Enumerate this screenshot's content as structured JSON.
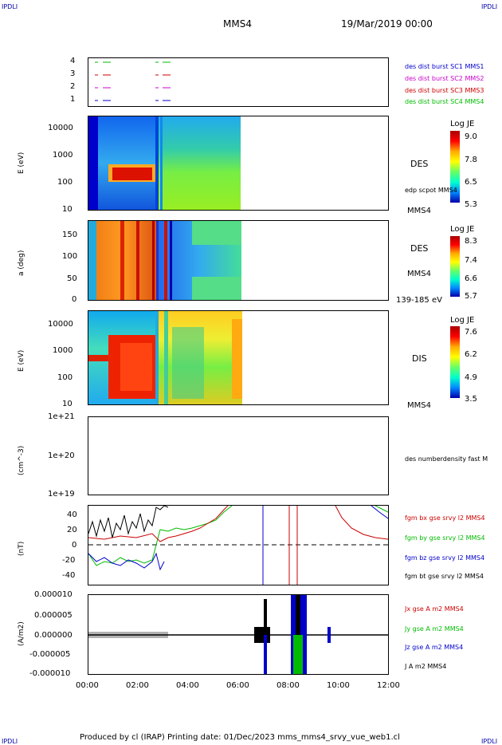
{
  "header": {
    "corner_left": "IPDLI",
    "corner_right": "IPDLI",
    "spacecraft": "MMS4",
    "date": "19/Mar/2019 00:00"
  },
  "footer": {
    "text": "Produced by cl (IRAP)   Printing date: 01/Dec/2023   mms_mms4_srvy_vue_web1.cl",
    "corner_left": "IPDLI",
    "corner_right": "IPDLI"
  },
  "colors": {
    "blue": "#0000cc",
    "magenta": "#cc00cc",
    "red": "#cc0000",
    "green": "#00bb00",
    "black": "#000000"
  },
  "chart_data": [
    {
      "type": "scatter",
      "panel": "availability",
      "y_ticks": [
        "4",
        "3",
        "2",
        "1"
      ],
      "legend": [
        {
          "label": "des dist burst SC1 MMS1",
          "color": "#0000cc"
        },
        {
          "label": "des dist burst SC2 MMS2",
          "color": "#cc00cc"
        },
        {
          "label": "des dist burst SC3 MMS3",
          "color": "#cc0000"
        },
        {
          "label": "des dist burst SC4 MMS4",
          "color": "#00bb00"
        }
      ]
    },
    {
      "type": "heatmap",
      "panel": "des-energy",
      "ylabel": "E (eV)",
      "y_ticks": [
        "10000",
        "1000",
        "100",
        "10"
      ],
      "colorbar": {
        "title": "Log JE",
        "ticks": [
          "9.0",
          "7.8",
          "6.5",
          "5.3"
        ]
      },
      "right_labels": [
        "DES",
        "edp scpot MMS4",
        "MMS4"
      ]
    },
    {
      "type": "heatmap",
      "panel": "des-pitch",
      "ylabel": "a (deg)",
      "y_ticks": [
        "150",
        "100",
        "50",
        "0"
      ],
      "colorbar": {
        "title": "Log JE",
        "ticks": [
          "8.3",
          "7.4",
          "6.6",
          "5.7"
        ]
      },
      "right_labels": [
        "DES",
        "MMS4",
        "139-185 eV"
      ]
    },
    {
      "type": "heatmap",
      "panel": "dis-energy",
      "ylabel": "E (eV)",
      "y_ticks": [
        "10000",
        "1000",
        "100",
        "10"
      ],
      "colorbar": {
        "title": "Log JE",
        "ticks": [
          "7.6",
          "6.2",
          "4.9",
          "3.5"
        ]
      },
      "right_labels": [
        "DIS",
        "MMS4"
      ]
    },
    {
      "type": "line",
      "panel": "density",
      "ylabel": "(cm^-3)",
      "y_ticks": [
        "1e+21",
        "1e+20",
        "1e+19"
      ],
      "legend": [
        {
          "label": "des numberdensity fast M",
          "color": "#000000"
        }
      ]
    },
    {
      "type": "line",
      "panel": "magnetic-field",
      "ylabel": "(nT)",
      "y_ticks": [
        "40",
        "20",
        "0",
        "-20",
        "-40"
      ],
      "ylim": [
        -50,
        50
      ],
      "legend": [
        {
          "label": "fgm bx gse srvy l2 MMS4",
          "color": "#cc0000"
        },
        {
          "label": "fgm by gse srvy l2 MMS4",
          "color": "#00bb00"
        },
        {
          "label": "fgm bz gse srvy l2 MMS4",
          "color": "#0000cc"
        },
        {
          "label": "fgm bt gse srvy l2 MMS4",
          "color": "#000000"
        }
      ]
    },
    {
      "type": "line",
      "panel": "current-density",
      "ylabel": "(A/m2)",
      "y_ticks": [
        "0.000010",
        "0.000005",
        "0.000000",
        "-0.000005",
        "-0.000010"
      ],
      "ylim": [
        -1e-05,
        1e-05
      ],
      "legend": [
        {
          "label": "Jx gse A m2 MMS4",
          "color": "#cc0000"
        },
        {
          "label": "Jy gse A m2 MMS4",
          "color": "#00bb00"
        },
        {
          "label": "Jz gse A m2 MMS4",
          "color": "#0000cc"
        },
        {
          "label": "J A m2 MMS4",
          "color": "#000000"
        }
      ]
    }
  ],
  "x_ticks": [
    "00:00",
    "02:00",
    "04:00",
    "06:00",
    "08:00",
    "10:00",
    "12:00"
  ]
}
